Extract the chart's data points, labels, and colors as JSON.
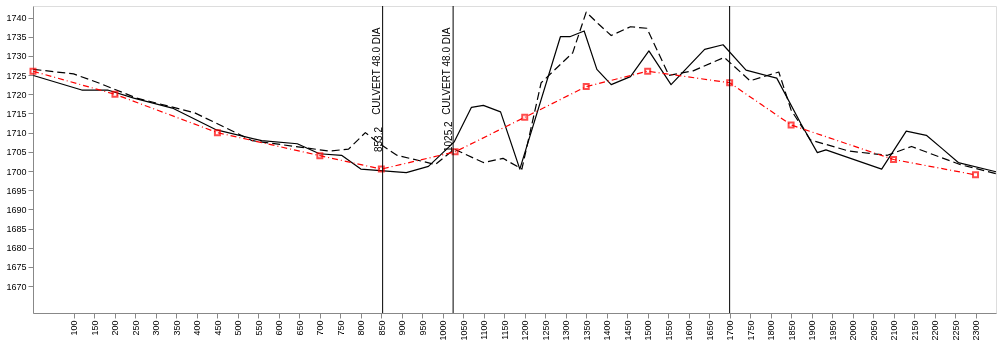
{
  "chart_data": {
    "type": "line",
    "xlim": [
      0,
      2350
    ],
    "ylim": [
      1663,
      1743
    ],
    "xticks": [
      100,
      150,
      200,
      250,
      300,
      350,
      400,
      450,
      500,
      550,
      600,
      650,
      700,
      750,
      800,
      850,
      900,
      950,
      1000,
      1050,
      1100,
      1150,
      1200,
      1250,
      1300,
      1350,
      1400,
      1450,
      1500,
      1550,
      1600,
      1650,
      1700,
      1750,
      1800,
      1850,
      1900,
      1950,
      2000,
      2050,
      2100,
      2150,
      2200,
      2250,
      2300
    ],
    "yticks": [
      1670,
      1675,
      1680,
      1685,
      1690,
      1695,
      1700,
      1705,
      1710,
      1715,
      1720,
      1725,
      1730,
      1735,
      1740
    ],
    "grid": false,
    "series": [
      {
        "color": "#000000",
        "line_style": "solid",
        "marker": "none",
        "x": [
          1,
          119,
          182,
          246,
          340,
          448,
          558,
          645,
          699,
          753,
          800,
          911,
          965,
          1028,
          1070,
          1099,
          1141,
          1188,
          1287,
          1310,
          1345,
          1376,
          1411,
          1458,
          1503,
          1557,
          1639,
          1684,
          1740,
          1815,
          1874,
          1914,
          1935,
          2071,
          2131,
          2180,
          2220,
          2258,
          2350
        ],
        "values": [
          1724.9,
          1721.1,
          1721.1,
          1719.0,
          1716.4,
          1710.7,
          1707.9,
          1707.1,
          1704.5,
          1704.1,
          1700.5,
          1699.6,
          1701.2,
          1707.6,
          1716.6,
          1717.1,
          1715.4,
          1700.5,
          1735.0,
          1735.0,
          1736.5,
          1726.5,
          1722.5,
          1724.6,
          1731.3,
          1722.5,
          1731.7,
          1732.9,
          1726.3,
          1724.2,
          1712.3,
          1704.8,
          1705.5,
          1700.5,
          1710.4,
          1709.3,
          1705.7,
          1702.2,
          1699.8
        ]
      },
      {
        "color": "#000000",
        "line_style": "dashed",
        "marker": "none",
        "x": [
          1,
          99,
          159,
          253,
          394,
          535,
          723,
          770,
          811,
          846,
          888,
          982,
          1028,
          1099,
          1147,
          1193,
          1240,
          1317,
          1350,
          1380,
          1411,
          1458,
          1498,
          1552,
          1611,
          1687,
          1750,
          1820,
          1850,
          1897,
          1991,
          2085,
          2144,
          2191,
          2262,
          2350
        ],
        "values": [
          1726.5,
          1725.3,
          1723.0,
          1719.0,
          1715.2,
          1707.9,
          1705.2,
          1705.7,
          1710.0,
          1707.1,
          1704.1,
          1701.7,
          1705.7,
          1702.2,
          1703.3,
          1700.5,
          1723.0,
          1730.8,
          1741.4,
          1738.3,
          1735.3,
          1737.6,
          1737.2,
          1724.9,
          1726.1,
          1729.6,
          1723.5,
          1725.8,
          1715.9,
          1708.1,
          1705.2,
          1704.1,
          1706.4,
          1704.5,
          1701.7,
          1699.3
        ]
      },
      {
        "color": "#ff0000",
        "line_style": "dotted",
        "marker": "square",
        "x": [
          0,
          200,
          450,
          700,
          850,
          1030,
          1200,
          1350,
          1500,
          1700,
          1850,
          2100,
          2300
        ],
        "values": [
          1726,
          1720,
          1710,
          1704,
          1700.5,
          1705,
          1714,
          1722,
          1726,
          1723,
          1712,
          1703,
          1699
        ]
      }
    ],
    "ref_lines": [
      {
        "axis": "x",
        "value": 853.2,
        "label": "853.2",
        "color": "#000000"
      },
      {
        "axis": "x",
        "value": 1025.2,
        "label": "1025.2",
        "color": "#000000"
      },
      {
        "axis": "x",
        "value": 1700,
        "label": null,
        "color": "#000000"
      }
    ],
    "annotations": [
      {
        "text": "CULVERT 48.0 DIA",
        "x": 853.2,
        "y": 1726
      },
      {
        "text": "CULVERT 48.0 DIA",
        "x": 1025.2,
        "y": 1726
      }
    ]
  }
}
